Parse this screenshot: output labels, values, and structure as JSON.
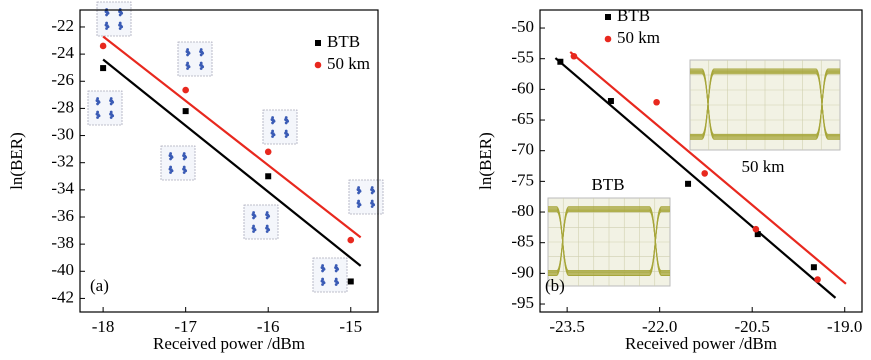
{
  "chart_data": [
    {
      "type": "scatter",
      "panel_label": "(a)",
      "xlabel": "Received power /dBm",
      "ylabel": "ln(BER)",
      "xlim": [
        -18.28,
        -14.67
      ],
      "ylim": [
        -43,
        -20.75
      ],
      "xticks": [
        -18,
        -17,
        -16,
        -15
      ],
      "yticks": [
        -22,
        -24,
        -26,
        -28,
        -30,
        -32,
        -34,
        -36,
        -38,
        -40,
        -42
      ],
      "legend": "upper right",
      "series": [
        {
          "name": "BTB",
          "color": "#000000",
          "marker": "square",
          "x": [
            -18,
            -17,
            -16,
            -15
          ],
          "values": [
            -25.03,
            -28.2,
            -33.0,
            -40.75
          ]
        },
        {
          "name": "50 km",
          "color": "#e8281e",
          "marker": "circle",
          "x": [
            -18,
            -17,
            -16,
            -15
          ],
          "values": [
            -23.4,
            -26.65,
            -31.2,
            -37.7
          ]
        }
      ],
      "fit_lines": [
        {
          "color": "#000000",
          "x": [
            -18,
            -14.88
          ],
          "values": [
            -24.4,
            -39.6
          ]
        },
        {
          "color": "#e8281e",
          "x": [
            -18,
            -14.88
          ],
          "values": [
            -22.7,
            -37.5
          ]
        }
      ]
    },
    {
      "type": "scatter",
      "panel_label": "(b)",
      "xlabel": "Received power /dBm",
      "ylabel": "ln(BER)",
      "inset_labels": [
        "50 km",
        "BTB"
      ],
      "xlim": [
        -23.94,
        -18.72
      ],
      "ylim": [
        -96.3,
        -47.06
      ],
      "xticks": [
        -23.5,
        {
          "value": -22,
          "label": "-22.0"
        },
        -20.5,
        {
          "value": -19,
          "label": "-19.0"
        }
      ],
      "yticks": [
        -50,
        -55,
        -60,
        -65,
        -70,
        -75,
        -80,
        -85,
        -90,
        -95
      ],
      "legend": "upper center",
      "series": [
        {
          "name": "BTB",
          "color": "#000000",
          "marker": "square",
          "x": [
            -23.61,
            -22.79,
            -21.54,
            -20.41,
            -19.5
          ],
          "values": [
            -55.5,
            -61.9,
            -75.4,
            -83.6,
            -89.0
          ]
        },
        {
          "name": "50 km",
          "color": "#e8281e",
          "marker": "circle",
          "x": [
            -23.39,
            -22.05,
            -21.27,
            -20.44,
            -19.44
          ],
          "values": [
            -54.6,
            -62.1,
            -73.7,
            -82.8,
            -91.0
          ]
        }
      ],
      "fit_lines": [
        {
          "color": "#000000",
          "x": [
            -23.69,
            -19.15
          ],
          "values": [
            -54.9,
            -94.0
          ]
        },
        {
          "color": "#e8281e",
          "x": [
            -23.45,
            -18.98
          ],
          "values": [
            -53.9,
            -91.7
          ]
        }
      ]
    }
  ]
}
